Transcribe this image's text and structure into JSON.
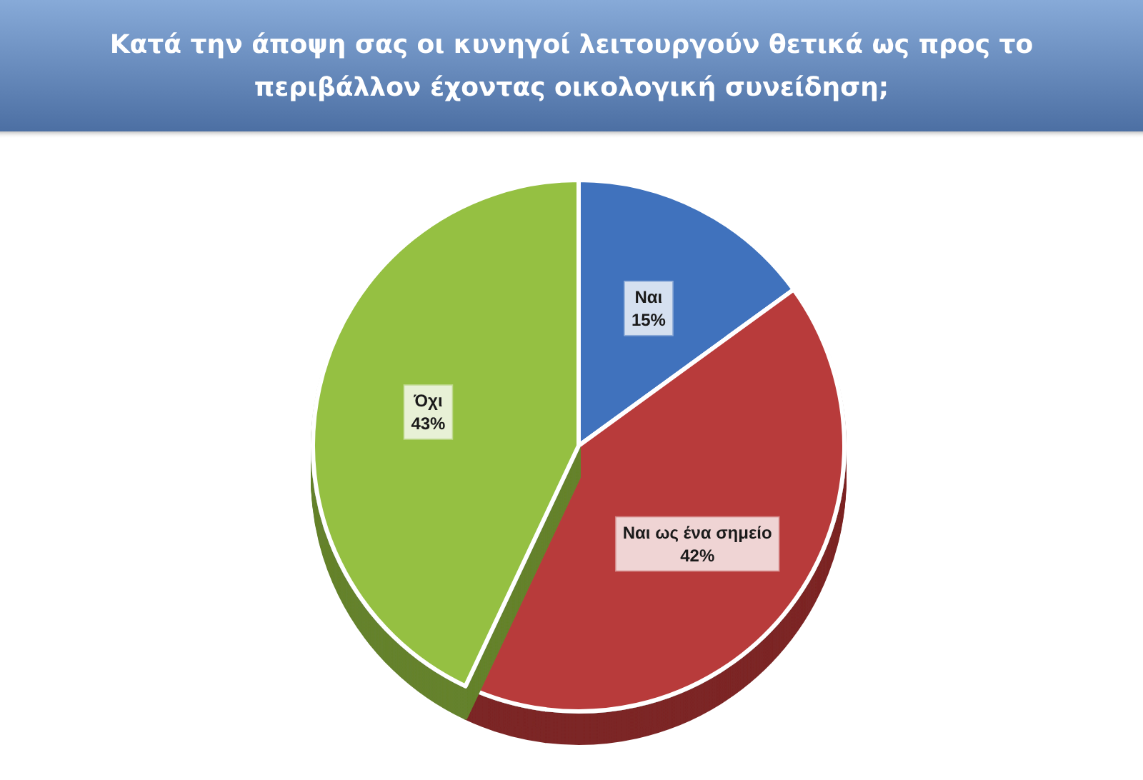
{
  "chart_data": {
    "type": "pie",
    "title": "Κατά την άποψη σας οι κυνηγοί λειτουργούν θετικά ως προς το περιβάλλον έχοντας οικολογική συνείδηση;",
    "categories": [
      "Ναι",
      "Ναι ως ένα σημείο",
      "Όχι"
    ],
    "values": [
      15,
      42,
      43
    ],
    "colors": [
      "#3f72bd",
      "#b83b3a",
      "#95c043"
    ],
    "value_labels": [
      "15%",
      "42%",
      "43%"
    ]
  }
}
